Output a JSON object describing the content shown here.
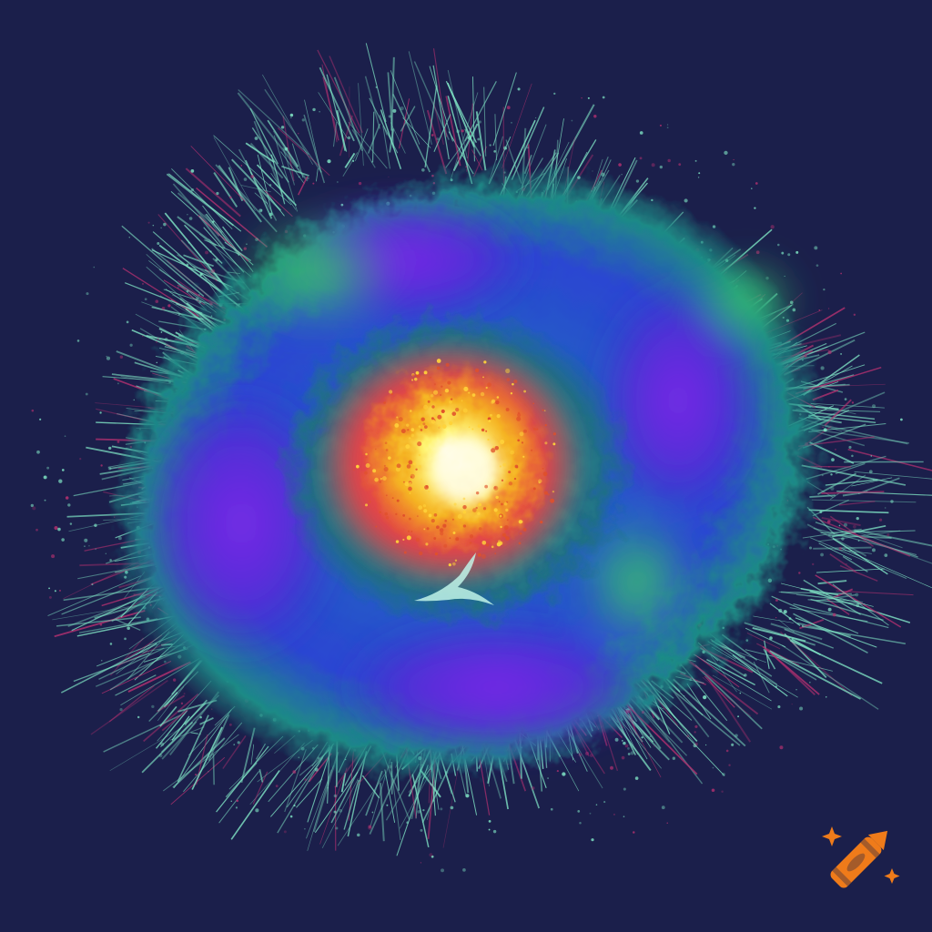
{
  "image": {
    "subject": "psychedelic-nebula",
    "colors": {
      "background": "#1b1f4b",
      "core": "#fff36a",
      "inner_ring": "#f08a18",
      "red_ring": "#e0404a",
      "teal_ring": "#2a8f8c",
      "violet": "#6a22e0",
      "blue": "#2a3ad8",
      "green": "#2bb86a",
      "mint_fringe": "#7fe3c4",
      "magenta_fringe": "#b0306f"
    }
  },
  "watermark": {
    "icon": "crayon-icon",
    "colors": {
      "body": "#ef7b1a",
      "sparkle": "#ef7b1a"
    }
  }
}
